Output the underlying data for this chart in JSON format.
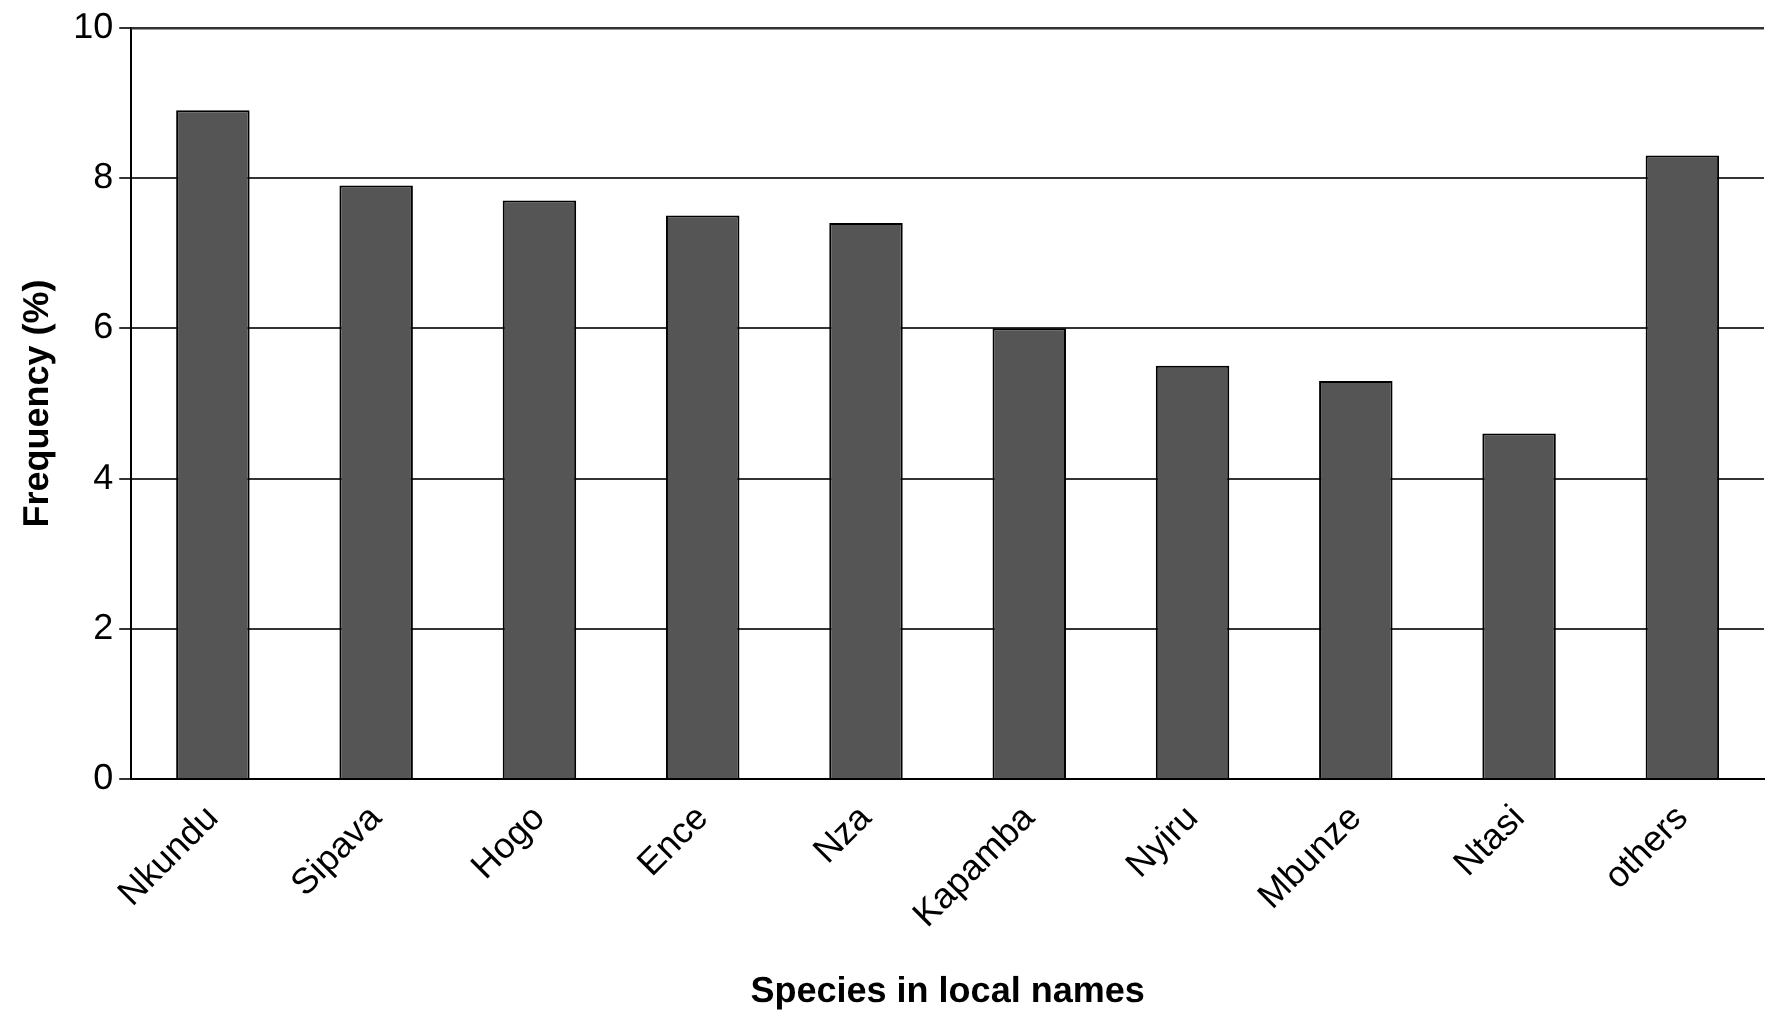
{
  "chart_data": {
    "type": "bar",
    "xlabel": "Species in local names",
    "ylabel": "Frequency (%)",
    "categories": [
      "Nkundu",
      "Sipava",
      "Hogo",
      "Ence",
      "Nza",
      "Kapamba",
      "Nyiru",
      "Mbunze",
      "Ntasi",
      "others"
    ],
    "values": [
      8.9,
      7.9,
      7.7,
      7.5,
      7.4,
      6.0,
      5.5,
      5.3,
      4.6,
      8.3
    ],
    "color": "#555555",
    "ylim": [
      0,
      10
    ],
    "yticks": [
      0,
      2,
      4,
      6,
      8,
      10
    ],
    "grid": "y",
    "legend": false
  }
}
